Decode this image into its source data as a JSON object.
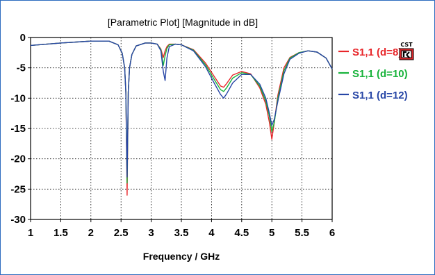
{
  "chart_data": {
    "type": "line",
    "title": "[Parametric Plot] [Magnitude in dB]",
    "xlabel": "Frequency / GHz",
    "ylabel": "",
    "xlim": [
      1,
      6
    ],
    "ylim": [
      -30,
      0
    ],
    "xticks": [
      "1",
      "1.5",
      "2",
      "2.5",
      "3",
      "3.5",
      "4",
      "4.5",
      "5",
      "5.5",
      "6"
    ],
    "yticks": [
      "0",
      "-5",
      "-10",
      "-15",
      "-20",
      "-25",
      "-30"
    ],
    "grid": true,
    "legend_position": "right",
    "series": [
      {
        "name": "S1,1 (d=8)",
        "color": "#e8262a",
        "x": [
          1.0,
          1.5,
          2.0,
          2.3,
          2.45,
          2.52,
          2.56,
          2.58,
          2.6,
          2.62,
          2.64,
          2.68,
          2.75,
          2.9,
          3.0,
          3.1,
          3.16,
          3.2,
          3.23,
          3.26,
          3.3,
          3.4,
          3.5,
          3.7,
          3.9,
          4.05,
          4.15,
          4.2,
          4.25,
          4.35,
          4.5,
          4.65,
          4.8,
          4.9,
          4.96,
          5.0,
          5.04,
          5.1,
          5.2,
          5.3,
          5.45,
          5.6,
          5.75,
          5.9,
          6.0
        ],
        "y": [
          -1.3,
          -0.9,
          -0.6,
          -0.6,
          -1.2,
          -2.6,
          -5.0,
          -9.0,
          -26.0,
          -9.0,
          -5.0,
          -2.8,
          -1.4,
          -0.9,
          -0.9,
          -1.1,
          -1.9,
          -3.3,
          -2.2,
          -1.5,
          -1.1,
          -1.1,
          -1.2,
          -2.0,
          -4.2,
          -6.5,
          -8.0,
          -8.2,
          -7.6,
          -6.2,
          -5.6,
          -6.0,
          -8.3,
          -11.0,
          -14.0,
          -16.8,
          -14.0,
          -9.5,
          -5.0,
          -3.3,
          -2.5,
          -2.2,
          -2.4,
          -3.4,
          -5.2
        ]
      },
      {
        "name": "S1,1 (d=10)",
        "color": "#17b33a",
        "x": [
          1.0,
          1.5,
          2.0,
          2.3,
          2.45,
          2.52,
          2.56,
          2.58,
          2.6,
          2.62,
          2.64,
          2.68,
          2.75,
          2.9,
          3.0,
          3.1,
          3.16,
          3.2,
          3.23,
          3.26,
          3.3,
          3.4,
          3.5,
          3.7,
          3.9,
          4.05,
          4.15,
          4.2,
          4.25,
          4.35,
          4.5,
          4.65,
          4.8,
          4.9,
          4.96,
          5.0,
          5.04,
          5.1,
          5.2,
          5.3,
          5.45,
          5.6,
          5.75,
          5.9,
          6.0
        ],
        "y": [
          -1.3,
          -0.9,
          -0.6,
          -0.6,
          -1.2,
          -2.6,
          -5.0,
          -9.0,
          -24.0,
          -9.0,
          -5.0,
          -2.8,
          -1.4,
          -0.9,
          -0.9,
          -1.1,
          -2.0,
          -4.6,
          -3.0,
          -1.8,
          -1.2,
          -1.1,
          -1.2,
          -2.1,
          -4.5,
          -7.0,
          -8.6,
          -8.9,
          -8.3,
          -6.7,
          -5.8,
          -6.1,
          -8.0,
          -10.5,
          -13.0,
          -15.5,
          -14.0,
          -10.0,
          -5.5,
          -3.4,
          -2.5,
          -2.2,
          -2.4,
          -3.4,
          -5.2
        ]
      },
      {
        "name": "S1,1 (d=12)",
        "color": "#2746a6",
        "x": [
          1.0,
          1.5,
          2.0,
          2.3,
          2.45,
          2.52,
          2.56,
          2.58,
          2.6,
          2.62,
          2.64,
          2.68,
          2.75,
          2.9,
          3.0,
          3.1,
          3.16,
          3.2,
          3.23,
          3.26,
          3.3,
          3.4,
          3.5,
          3.7,
          3.9,
          4.05,
          4.15,
          4.2,
          4.25,
          4.35,
          4.5,
          4.65,
          4.8,
          4.9,
          4.96,
          5.0,
          5.04,
          5.1,
          5.2,
          5.3,
          5.45,
          5.6,
          5.75,
          5.9,
          6.0
        ],
        "y": [
          -1.3,
          -0.9,
          -0.6,
          -0.6,
          -1.2,
          -2.6,
          -5.0,
          -9.0,
          -23.0,
          -9.0,
          -5.0,
          -2.8,
          -1.4,
          -0.9,
          -0.9,
          -1.1,
          -2.2,
          -5.6,
          -7.1,
          -3.4,
          -1.5,
          -1.1,
          -1.2,
          -2.2,
          -4.8,
          -7.6,
          -9.4,
          -10.0,
          -9.3,
          -7.5,
          -6.1,
          -6.1,
          -7.7,
          -10.0,
          -12.5,
          -14.5,
          -13.5,
          -10.5,
          -6.0,
          -3.6,
          -2.6,
          -2.2,
          -2.4,
          -3.4,
          -5.2
        ]
      }
    ]
  },
  "logo": {
    "text": "CST",
    "icon": "cst-logo-icon"
  }
}
